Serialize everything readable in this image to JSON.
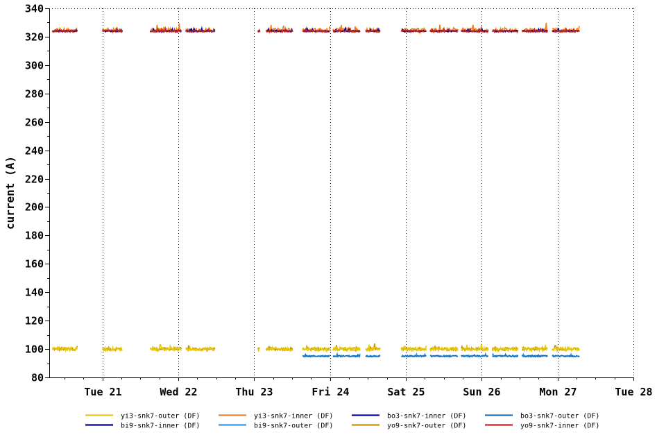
{
  "chart_data": {
    "type": "line",
    "ylabel": "current (A)",
    "xlabel": "",
    "ylim": [
      80,
      340
    ],
    "yticks": [
      80,
      100,
      120,
      140,
      160,
      180,
      200,
      220,
      240,
      260,
      280,
      300,
      320,
      340
    ],
    "xlim": [
      20.3,
      28.0
    ],
    "x_unit": "day of month",
    "xticks": [
      {
        "x": 21,
        "label": "Tue 21"
      },
      {
        "x": 22,
        "label": "Wed 22"
      },
      {
        "x": 23,
        "label": "Thu 23"
      },
      {
        "x": 24,
        "label": "Fri 24"
      },
      {
        "x": 25,
        "label": "Sat 25"
      },
      {
        "x": 26,
        "label": "Sun 26"
      },
      {
        "x": 27,
        "label": "Mon 27"
      },
      {
        "x": 28,
        "label": "Tue 28"
      }
    ],
    "grid": "vertical dotted",
    "legend_position": "bottom",
    "data_segments": [
      [
        20.34,
        20.67
      ],
      [
        21.0,
        21.27
      ],
      [
        21.63,
        22.05
      ],
      [
        22.1,
        22.49
      ],
      [
        23.05,
        23.08
      ],
      [
        23.16,
        23.51
      ],
      [
        23.64,
        24.0
      ],
      [
        24.04,
        24.4
      ],
      [
        24.47,
        24.67
      ],
      [
        24.94,
        25.27
      ],
      [
        25.32,
        25.69
      ],
      [
        25.73,
        26.09
      ],
      [
        26.14,
        26.48
      ],
      [
        26.53,
        26.87
      ],
      [
        26.93,
        27.29
      ]
    ],
    "series": [
      {
        "name": "yi3-snk7-outer (DF)",
        "color": "#e8c800",
        "level": 100,
        "noise": 2.5
      },
      {
        "name": "yi3-snk7-inner (DF)",
        "color": "#f08020",
        "level": 324.5,
        "noise": 3.0
      },
      {
        "name": "bo3-snk7-inner (DF)",
        "color": "#0000b8",
        "level": 324,
        "noise": 1.0
      },
      {
        "name": "bo3-snk7-outer (DF)",
        "color": "#1e6fb8",
        "level": 95,
        "noise": 1.0,
        "starts_at": 23.64
      },
      {
        "name": "bi9-snk7-inner (DF)",
        "color": "#000080",
        "level": 324,
        "noise": 1.0
      },
      {
        "name": "bi9-snk7-outer (DF)",
        "color": "#3399e0",
        "level": 95,
        "noise": 1.0,
        "starts_at": 23.64
      },
      {
        "name": "yo9-snk7-outer (DF)",
        "color": "#c89000",
        "level": 100,
        "noise": 2.0
      },
      {
        "name": "yo9-snk7-inner (DF)",
        "color": "#c02828",
        "level": 324,
        "noise": 1.5
      }
    ],
    "legend_layout": [
      [
        0,
        4
      ],
      [
        1,
        5
      ],
      [
        2,
        6
      ],
      [
        3,
        7
      ]
    ]
  }
}
